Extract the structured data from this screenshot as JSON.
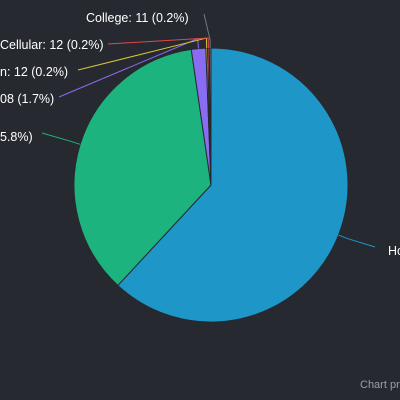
{
  "chart_data": {
    "type": "pie",
    "slices": [
      {
        "label": "Ho",
        "value": null,
        "percent": null,
        "color": "#1e96c8"
      },
      {
        "label": "",
        "value": null,
        "percent": 35.8,
        "color": "#1db37f"
      },
      {
        "label": "",
        "value": null,
        "percent": 1.7,
        "color": "#8a6cf2"
      },
      {
        "label": "",
        "value": 12,
        "percent": 0.2,
        "color": "#d8c637"
      },
      {
        "label": "Cellular",
        "value": 12,
        "percent": 0.2,
        "color": "#e2484a"
      },
      {
        "label": "College",
        "value": 11,
        "percent": 0.2,
        "color": "#6e7c82"
      }
    ],
    "label_texts": [
      "Ho",
      "5.8%)",
      "08 (1.7%)",
      "n: 12 (0.2%)",
      "Cellular: 12 (0.2%)",
      "College: 11 (0.2%)"
    ],
    "legend": "none"
  },
  "credit": "Chart pr",
  "colors": {
    "background": "#262930",
    "label_text": "#ffffff",
    "credit_text": "#9b9ea6"
  }
}
